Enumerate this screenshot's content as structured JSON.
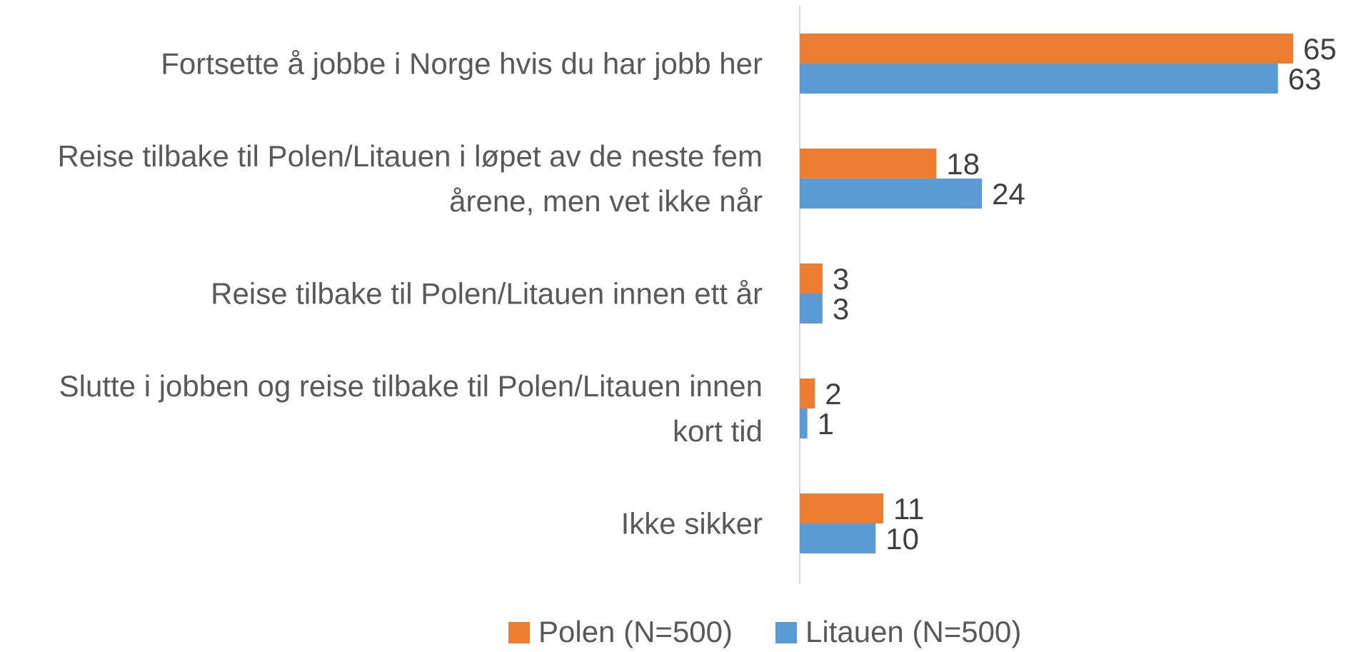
{
  "chart_data": {
    "type": "bar",
    "orientation": "horizontal",
    "categories": [
      "Fortsette å jobbe i Norge hvis du har jobb her",
      "Reise tilbake til Polen/Litauen i løpet av de neste fem årene, men vet ikke når",
      "Reise tilbake til Polen/Litauen innen ett år",
      "Slutte i jobben og reise tilbake til Polen/Litauen innen kort tid",
      "Ikke sikker"
    ],
    "series": [
      {
        "name": "Polen (N=500)",
        "color": "#ed7d31",
        "values": [
          65,
          18,
          3,
          2,
          11
        ]
      },
      {
        "name": "Litauen (N=500)",
        "color": "#5b9bd5",
        "values": [
          63,
          24,
          3,
          1,
          10
        ]
      }
    ],
    "legend": "bottom"
  }
}
